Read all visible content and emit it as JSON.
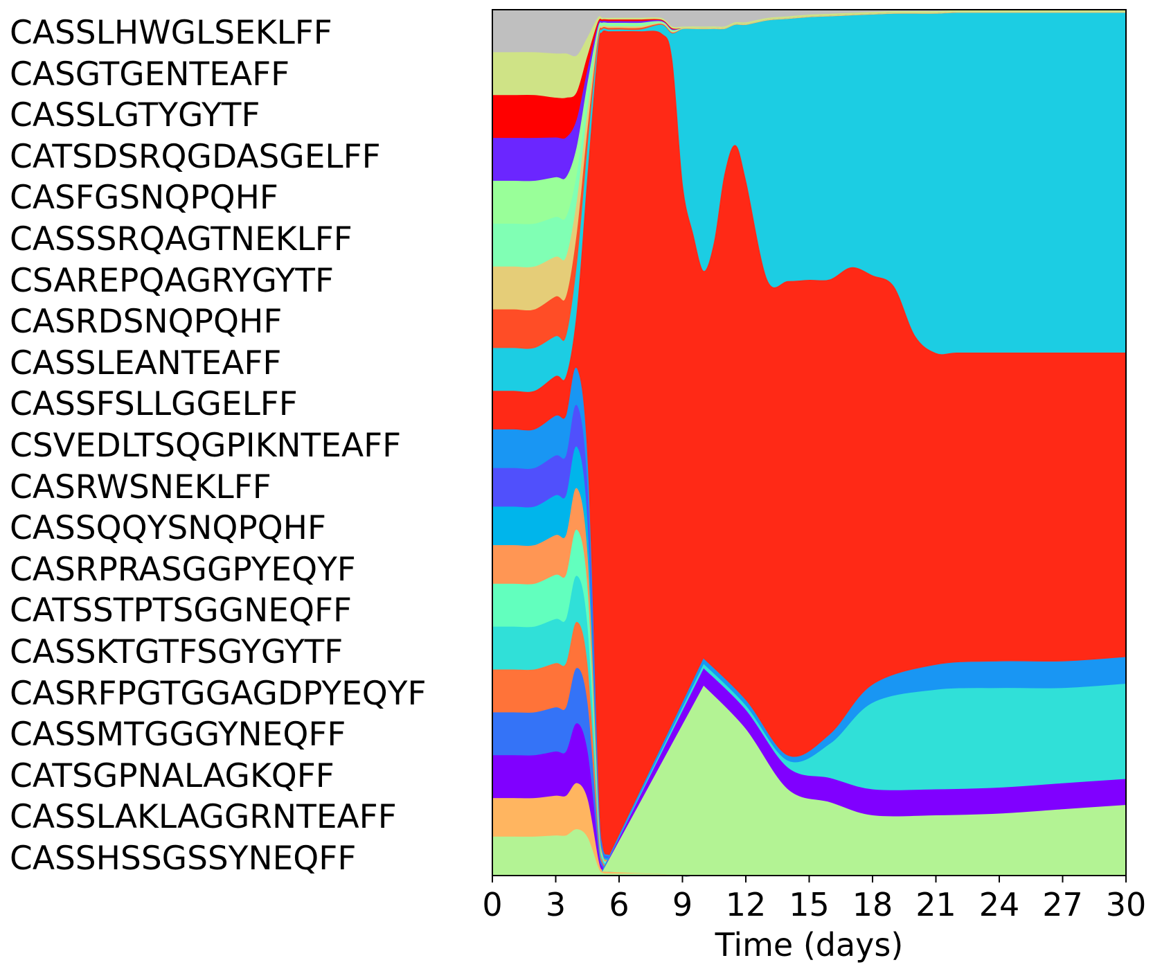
{
  "chart_data": {
    "type": "area",
    "title": "",
    "xlabel": "Time (days)",
    "ylabel": "",
    "xlim": [
      0,
      30
    ],
    "ylim": [
      0,
      1
    ],
    "x_ticks": [
      0,
      3,
      6,
      9,
      12,
      15,
      18,
      21,
      24,
      27,
      30
    ],
    "grid": false,
    "stacking": "normalized",
    "legend": [
      "CASSLHWGLSEKLFF",
      "CASGTGENTEAFF",
      "CASSLGTYGYTF",
      "CATSDSRQGDASGELFF",
      "CASFGSNQPQHF",
      "CASSSRQAGTNEKLFF",
      "CSAREPQAGRYGYTF",
      "CASRDSNQPQHF",
      "CASSLEANTEAFF",
      "CASSFSLLGGELFF",
      "CSVEDLTSQGPIKNTEAFF",
      "CASRWSNEKLFF",
      "CASSQQYSNQPQHF",
      "CASRPRASGGPYEQYF",
      "CATSSTPTSGGNEQFF",
      "CASSKTGTFSGYGYTF",
      "CASRFPGTGGAGDPYEQYF",
      "CASSMTGGGYNEQFF",
      "CATSGPNALAGKQFF",
      "CASSLAKLAGGRNTEAFF",
      "CASSHSSGSSYNEQFF"
    ],
    "legend_placement": "left, one label per row",
    "series_order_top_to_bottom": [
      "CASSLHWGLSEKLFF",
      "CASGTGENTEAFF",
      "CASSLGTYGYTF",
      "CATSDSRQGDASGELFF",
      "CASFGSNQPQHF (light)",
      "CASSSRQAGTNEKLFF",
      "CSAREPQAGRYGYTF",
      "CASRDSNQPQHF",
      "CASSLEANTEAFF",
      "CASSFSLLGGELFF (dominant)",
      "CSVEDLTSQGPIKNTEAFF",
      "CASRWSNEKLFF",
      "CASSQQYSNQPQHF",
      "CASRPRASGGPYEQYF",
      "CATSSTPTSGGNEQFF",
      "CASSKTGTFSGYGYTF",
      "CASRFPGTGGAGDPYEQYF",
      "CASSMTGGGYNEQFF",
      "CATSGPNALAGKQFF",
      "CASSLAKLAGGRNTEAFF",
      "CASSHSSGSSYNEQFF"
    ],
    "x": [
      0,
      1,
      2,
      3,
      3.5,
      4,
      4.5,
      5,
      5.2,
      5.5,
      6,
      7,
      8,
      8.5,
      9,
      9.5,
      10,
      10.5,
      11,
      11.5,
      12,
      13,
      14,
      15,
      16,
      17,
      18,
      19,
      20,
      21,
      22,
      24,
      26,
      28,
      30
    ],
    "series": [
      {
        "name": "CASSHSSGSSYNEQFF",
        "color": "#b3f394",
        "values": [
          0.045,
          0.045,
          0.045,
          0.045,
          0.045,
          0.05,
          0.04,
          0.01,
          0.003,
          0.002,
          0.002,
          0.002,
          0.001,
          0.001,
          0,
          0,
          0,
          0,
          0,
          0,
          0,
          0,
          0,
          0,
          0,
          0,
          0,
          0,
          0,
          0,
          0,
          0,
          0,
          0,
          0
        ]
      },
      {
        "name": "CASSLAKLAGGRNTEAFF",
        "color": "#ffb560",
        "values": [
          0.045,
          0.045,
          0.045,
          0.045,
          0.045,
          0.05,
          0.04,
          0.01,
          0.003,
          0.002,
          0.002,
          0.002,
          0.001,
          0.001,
          0,
          0,
          0,
          0,
          0,
          0,
          0,
          0,
          0,
          0,
          0,
          0,
          0,
          0,
          0,
          0,
          0,
          0,
          0,
          0,
          0
        ]
      },
      {
        "name": "CATSGPNALAGKQFF",
        "color": "#8000ff",
        "values": [
          0.05,
          0.05,
          0.05,
          0.05,
          0.05,
          0.065,
          0.05,
          0.012,
          0.004,
          0.003,
          0.003,
          0.002,
          0.002,
          0.002,
          0,
          0,
          0,
          0,
          0,
          0,
          0,
          0,
          0,
          0,
          0,
          0,
          0,
          0,
          0,
          0,
          0,
          0,
          0,
          0,
          0
        ]
      },
      {
        "name": "CASSMTGGGYNEQFF",
        "color": "#3473f7",
        "values": [
          0.05,
          0.05,
          0.05,
          0.05,
          0.05,
          0.06,
          0.05,
          0.012,
          0.004,
          0.003,
          0.003,
          0.002,
          0.002,
          0.002,
          0,
          0,
          0,
          0,
          0,
          0,
          0,
          0,
          0,
          0,
          0,
          0,
          0,
          0,
          0,
          0,
          0,
          0,
          0,
          0,
          0
        ]
      },
      {
        "name": "CASRFPGTGGAGDPYEQYF",
        "color": "#ff7339",
        "values": [
          0.05,
          0.05,
          0.05,
          0.05,
          0.05,
          0.05,
          0.04,
          0.01,
          0.003,
          0.002,
          0.002,
          0.002,
          0.001,
          0.001,
          0,
          0,
          0,
          0,
          0,
          0,
          0,
          0,
          0,
          0,
          0,
          0,
          0,
          0,
          0,
          0,
          0,
          0,
          0,
          0,
          0
        ]
      },
      {
        "name": "CASSKTGTFSGYGYTF",
        "color": "#30e0d8",
        "values": [
          0.05,
          0.05,
          0.05,
          0.05,
          0.05,
          0.05,
          0.04,
          0.01,
          0.003,
          0.002,
          0.002,
          0.002,
          0.001,
          0.001,
          0,
          0,
          0,
          0,
          0,
          0,
          0,
          0,
          0,
          0,
          0,
          0,
          0,
          0,
          0,
          0,
          0,
          0,
          0,
          0,
          0
        ]
      },
      {
        "name": "CATSSTPTSGGNEQFF",
        "color": "#62ffbe",
        "values": [
          0.05,
          0.05,
          0.05,
          0.05,
          0.05,
          0.05,
          0.04,
          0.01,
          0.003,
          0.002,
          0.002,
          0.002,
          0.001,
          0.001,
          0,
          0,
          0,
          0,
          0,
          0,
          0,
          0,
          0,
          0,
          0,
          0,
          0,
          0,
          0,
          0,
          0,
          0,
          0,
          0,
          0
        ]
      },
      {
        "name": "CASRPRASGGPYEQYF",
        "color": "#ff9654",
        "values": [
          0.045,
          0.045,
          0.045,
          0.045,
          0.045,
          0.045,
          0.035,
          0.01,
          0.003,
          0.002,
          0.002,
          0.002,
          0.001,
          0.001,
          0,
          0,
          0,
          0,
          0,
          0,
          0,
          0,
          0,
          0,
          0,
          0,
          0,
          0,
          0,
          0,
          0,
          0,
          0,
          0,
          0
        ]
      },
      {
        "name": "CASSQQYSNQPQHF",
        "color": "#00b5eb",
        "values": [
          0.045,
          0.045,
          0.045,
          0.045,
          0.045,
          0.045,
          0.035,
          0.01,
          0.003,
          0.002,
          0.002,
          0.002,
          0.001,
          0.001,
          0,
          0,
          0,
          0,
          0,
          0,
          0,
          0,
          0,
          0,
          0,
          0,
          0,
          0,
          0,
          0,
          0,
          0,
          0,
          0,
          0
        ]
      },
      {
        "name": "CASRWSNEKLFF",
        "color": "#5050fc",
        "values": [
          0.045,
          0.045,
          0.045,
          0.045,
          0.045,
          0.045,
          0.035,
          0.01,
          0.003,
          0.002,
          0.002,
          0.002,
          0.001,
          0.001,
          0,
          0,
          0,
          0,
          0,
          0,
          0,
          0,
          0,
          0,
          0,
          0,
          0,
          0,
          0,
          0,
          0,
          0,
          0,
          0,
          0
        ]
      },
      {
        "name": "CSVEDLTSQGPIKNTEAFF",
        "color": "#1996f3",
        "values": [
          0.045,
          0.045,
          0.045,
          0.045,
          0.045,
          0.04,
          0.03,
          0.008,
          0.003,
          0.002,
          0.002,
          0.002,
          0.001,
          0.001,
          0,
          0,
          0,
          0,
          0,
          0,
          0,
          0,
          0,
          0,
          0,
          0,
          0,
          0,
          0,
          0,
          0,
          0,
          0,
          0,
          0
        ]
      },
      {
        "name": "CASSFSLLGGELFF",
        "color": "#ff2916",
        "values": [
          0.045,
          0.045,
          0.045,
          0.045,
          0.045,
          0.06,
          0.3,
          0.9,
          0.97,
          0.975,
          0.978,
          0.978,
          0.97,
          0.94,
          0.8,
          0.75,
          0.7,
          0.74,
          0.82,
          0.85,
          0.8,
          0.69,
          0.68,
          0.68,
          0.68,
          0.7,
          0.69,
          0.67,
          0.62,
          0.6,
          0.6,
          0.6,
          0.6,
          0.6,
          0.6
        ]
      },
      {
        "name": "CASSLEANTEAFF",
        "color": "#1ccde3",
        "values": [
          0.05,
          0.05,
          0.05,
          0.045,
          0.045,
          0.05,
          0.03,
          0.008,
          0.003,
          0.002,
          0.002,
          0.002,
          0.01,
          0.03,
          0.18,
          0.24,
          0.28,
          0.25,
          0.17,
          0.14,
          0.18,
          0.3,
          0.3,
          0.3,
          0.3,
          0.29,
          0.3,
          0.31,
          0.37,
          0.39,
          0.39,
          0.39,
          0.39,
          0.39,
          0.39
        ]
      },
      {
        "name": "CASRDSNQPQHF",
        "color": "#ff4d26",
        "values": [
          0.045,
          0.045,
          0.045,
          0.045,
          0.045,
          0.035,
          0.02,
          0.005,
          0.002,
          0.002,
          0.002,
          0.002,
          0.001,
          0.001,
          0,
          0,
          0,
          0,
          0,
          0,
          0,
          0,
          0,
          0,
          0,
          0,
          0,
          0,
          0,
          0,
          0,
          0,
          0,
          0,
          0
        ]
      },
      {
        "name": "CSAREPQAGRYGYTF",
        "color": "#e5cd78",
        "values": [
          0.05,
          0.05,
          0.05,
          0.045,
          0.045,
          0.035,
          0.02,
          0.005,
          0.002,
          0.002,
          0.002,
          0.002,
          0.001,
          0.001,
          0.001,
          0.001,
          0.001,
          0.001,
          0.001,
          0.001,
          0.001,
          0.001,
          0.001,
          0.001,
          0.001,
          0.001,
          0.001,
          0.001,
          0.001,
          0.001,
          0.001,
          0.001,
          0.001,
          0.001,
          0.001
        ]
      },
      {
        "name": "CASSSRQAGTNEKLFF",
        "color": "#80ffb4",
        "values": [
          0.05,
          0.05,
          0.05,
          0.045,
          0.045,
          0.03,
          0.015,
          0.004,
          0.002,
          0.002,
          0.002,
          0.002,
          0.001,
          0.001,
          0,
          0,
          0,
          0,
          0,
          0,
          0,
          0,
          0,
          0,
          0,
          0,
          0,
          0,
          0,
          0,
          0,
          0,
          0,
          0,
          0
        ]
      },
      {
        "name": "CASFGSNQPQHF",
        "color": "#99ff99",
        "values": [
          0.05,
          0.05,
          0.05,
          0.045,
          0.045,
          0.03,
          0.015,
          0.004,
          0.002,
          0.002,
          0.002,
          0.002,
          0.001,
          0.001,
          0,
          0,
          0,
          0,
          0,
          0,
          0,
          0,
          0,
          0,
          0,
          0,
          0,
          0,
          0,
          0,
          0,
          0,
          0,
          0,
          0
        ]
      },
      {
        "name": "CATSDSRQGDASGELFF",
        "color": "#6b26ff",
        "values": [
          0.05,
          0.05,
          0.05,
          0.045,
          0.045,
          0.03,
          0.015,
          0.004,
          0.002,
          0.002,
          0.002,
          0.002,
          0.001,
          0.001,
          0,
          0,
          0,
          0,
          0,
          0,
          0,
          0,
          0,
          0,
          0,
          0,
          0,
          0,
          0,
          0,
          0,
          0,
          0,
          0,
          0
        ]
      },
      {
        "name": "CASSLGTYGYTF",
        "color": "#ff0000",
        "values": [
          0.05,
          0.05,
          0.05,
          0.045,
          0.045,
          0.03,
          0.015,
          0.004,
          0.002,
          0.002,
          0.002,
          0.002,
          0.001,
          0.001,
          0,
          0,
          0,
          0,
          0,
          0,
          0,
          0,
          0,
          0,
          0,
          0,
          0,
          0,
          0,
          0,
          0,
          0,
          0,
          0,
          0
        ]
      },
      {
        "name": "CASGTGENTEAFF",
        "color": "#cfe386",
        "values": [
          0.05,
          0.05,
          0.05,
          0.05,
          0.05,
          0.04,
          0.02,
          0.006,
          0.002,
          0.002,
          0.002,
          0.002,
          0.002,
          0.002,
          0.002,
          0.002,
          0.002,
          0.002,
          0.002,
          0.002,
          0.002,
          0.002,
          0.002,
          0.002,
          0.002,
          0.002,
          0.002,
          0.002,
          0.002,
          0.002,
          0.002,
          0.002,
          0.002,
          0.002,
          0.002
        ]
      },
      {
        "name": "CASSLHWGLSEKLFF",
        "color": "#bfbfbf",
        "values": [
          0.05,
          0.05,
          0.05,
          0.05,
          0.05,
          0.05,
          0.03,
          0.01,
          0.01,
          0.01,
          0.01,
          0.01,
          0.01,
          0.02,
          0.02,
          0.02,
          0.02,
          0.02,
          0.02,
          0.015,
          0.015,
          0.01,
          0.008,
          0.006,
          0.005,
          0.004,
          0.003,
          0.002,
          0.002,
          0.002,
          0.001,
          0.001,
          0.001,
          0.001,
          0.001
        ]
      }
    ],
    "bottom_band_series": [
      {
        "name": "CASSHSSGSSYNEQFF (late)",
        "color": "#b3f394",
        "points": [
          [
            10,
            0.22
          ],
          [
            12,
            0.17
          ],
          [
            14,
            0.1
          ],
          [
            16,
            0.085
          ],
          [
            18,
            0.07
          ],
          [
            21,
            0.07
          ],
          [
            24,
            0.072
          ],
          [
            27,
            0.077
          ],
          [
            30,
            0.082
          ]
        ]
      },
      {
        "name": "CATSGPNALAGKQFF (late)",
        "color": "#8000ff",
        "points": [
          [
            10,
            0.02
          ],
          [
            12,
            0.022
          ],
          [
            14,
            0.025
          ],
          [
            16,
            0.028
          ],
          [
            18,
            0.03
          ],
          [
            21,
            0.03
          ],
          [
            24,
            0.03
          ],
          [
            27,
            0.03
          ],
          [
            30,
            0.03
          ]
        ]
      },
      {
        "name": "CASSKTGTFSGYGYTF (late)",
        "color": "#30e0d8",
        "points": [
          [
            10,
            0.005
          ],
          [
            12,
            0.005
          ],
          [
            14,
            0.008
          ],
          [
            16,
            0.04
          ],
          [
            18,
            0.1
          ],
          [
            21,
            0.115
          ],
          [
            24,
            0.115
          ],
          [
            27,
            0.11
          ],
          [
            30,
            0.11
          ]
        ]
      },
      {
        "name": "CSVEDLTSQGPIKNTEAFF (late)",
        "color": "#1996f3",
        "points": [
          [
            10,
            0.005
          ],
          [
            12,
            0.005
          ],
          [
            14,
            0.005
          ],
          [
            16,
            0.01
          ],
          [
            18,
            0.02
          ],
          [
            21,
            0.028
          ],
          [
            24,
            0.03
          ],
          [
            27,
            0.03
          ],
          [
            30,
            0.03
          ]
        ]
      }
    ]
  }
}
